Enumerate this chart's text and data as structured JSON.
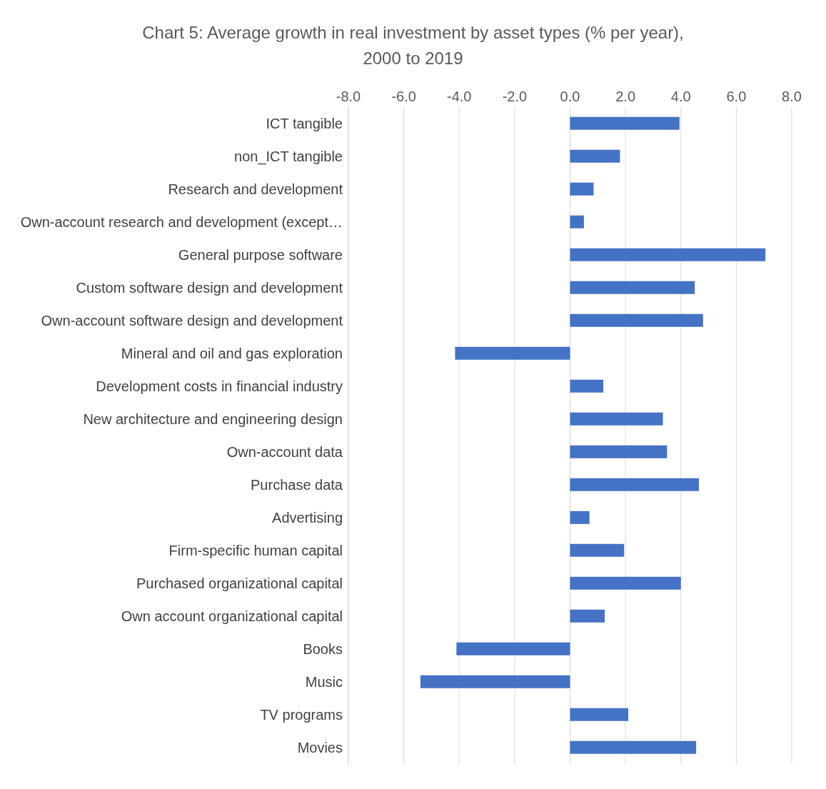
{
  "chart_data": {
    "type": "bar",
    "orientation": "horizontal",
    "title": "Chart 5: Average growth in real investment by asset types (% per year),\n2000 to 2019",
    "categories": [
      "ICT tangible",
      "non_ICT tangible",
      "Research and development",
      "Own-account research and development (except…",
      "General purpose software",
      "Custom software design and development",
      "Own-account software design and development",
      "Mineral and oil and gas exploration",
      "Development costs in financial industry",
      "New architecture and engineering design",
      "Own-account data",
      "Purchase data",
      "Advertising",
      "Firm-specific human capital",
      "Purchased organizational capital",
      "Own account organizational capital",
      "Books",
      "Music",
      "TV programs",
      "Movies"
    ],
    "series": [
      {
        "color": "#4472c4",
        "values": [
          3.95,
          1.8,
          0.85,
          0.5,
          7.05,
          4.5,
          4.8,
          -4.15,
          1.2,
          3.35,
          3.5,
          4.65,
          0.7,
          1.95,
          4.0,
          1.25,
          -4.1,
          -5.4,
          2.1,
          4.55
        ]
      }
    ],
    "xlim": [
      -8,
      8
    ],
    "xticks": [
      {
        "value": -8,
        "label": "-8.0"
      },
      {
        "value": -6,
        "label": "-6.0"
      },
      {
        "value": -4,
        "label": "-4.0"
      },
      {
        "value": -2,
        "label": "-2.0"
      },
      {
        "value": 0,
        "label": "0.0"
      },
      {
        "value": 2,
        "label": "2.0"
      },
      {
        "value": 4,
        "label": "4.0"
      },
      {
        "value": 6,
        "label": "6.0"
      },
      {
        "value": 8,
        "label": "8.0"
      }
    ],
    "grid": "x"
  }
}
